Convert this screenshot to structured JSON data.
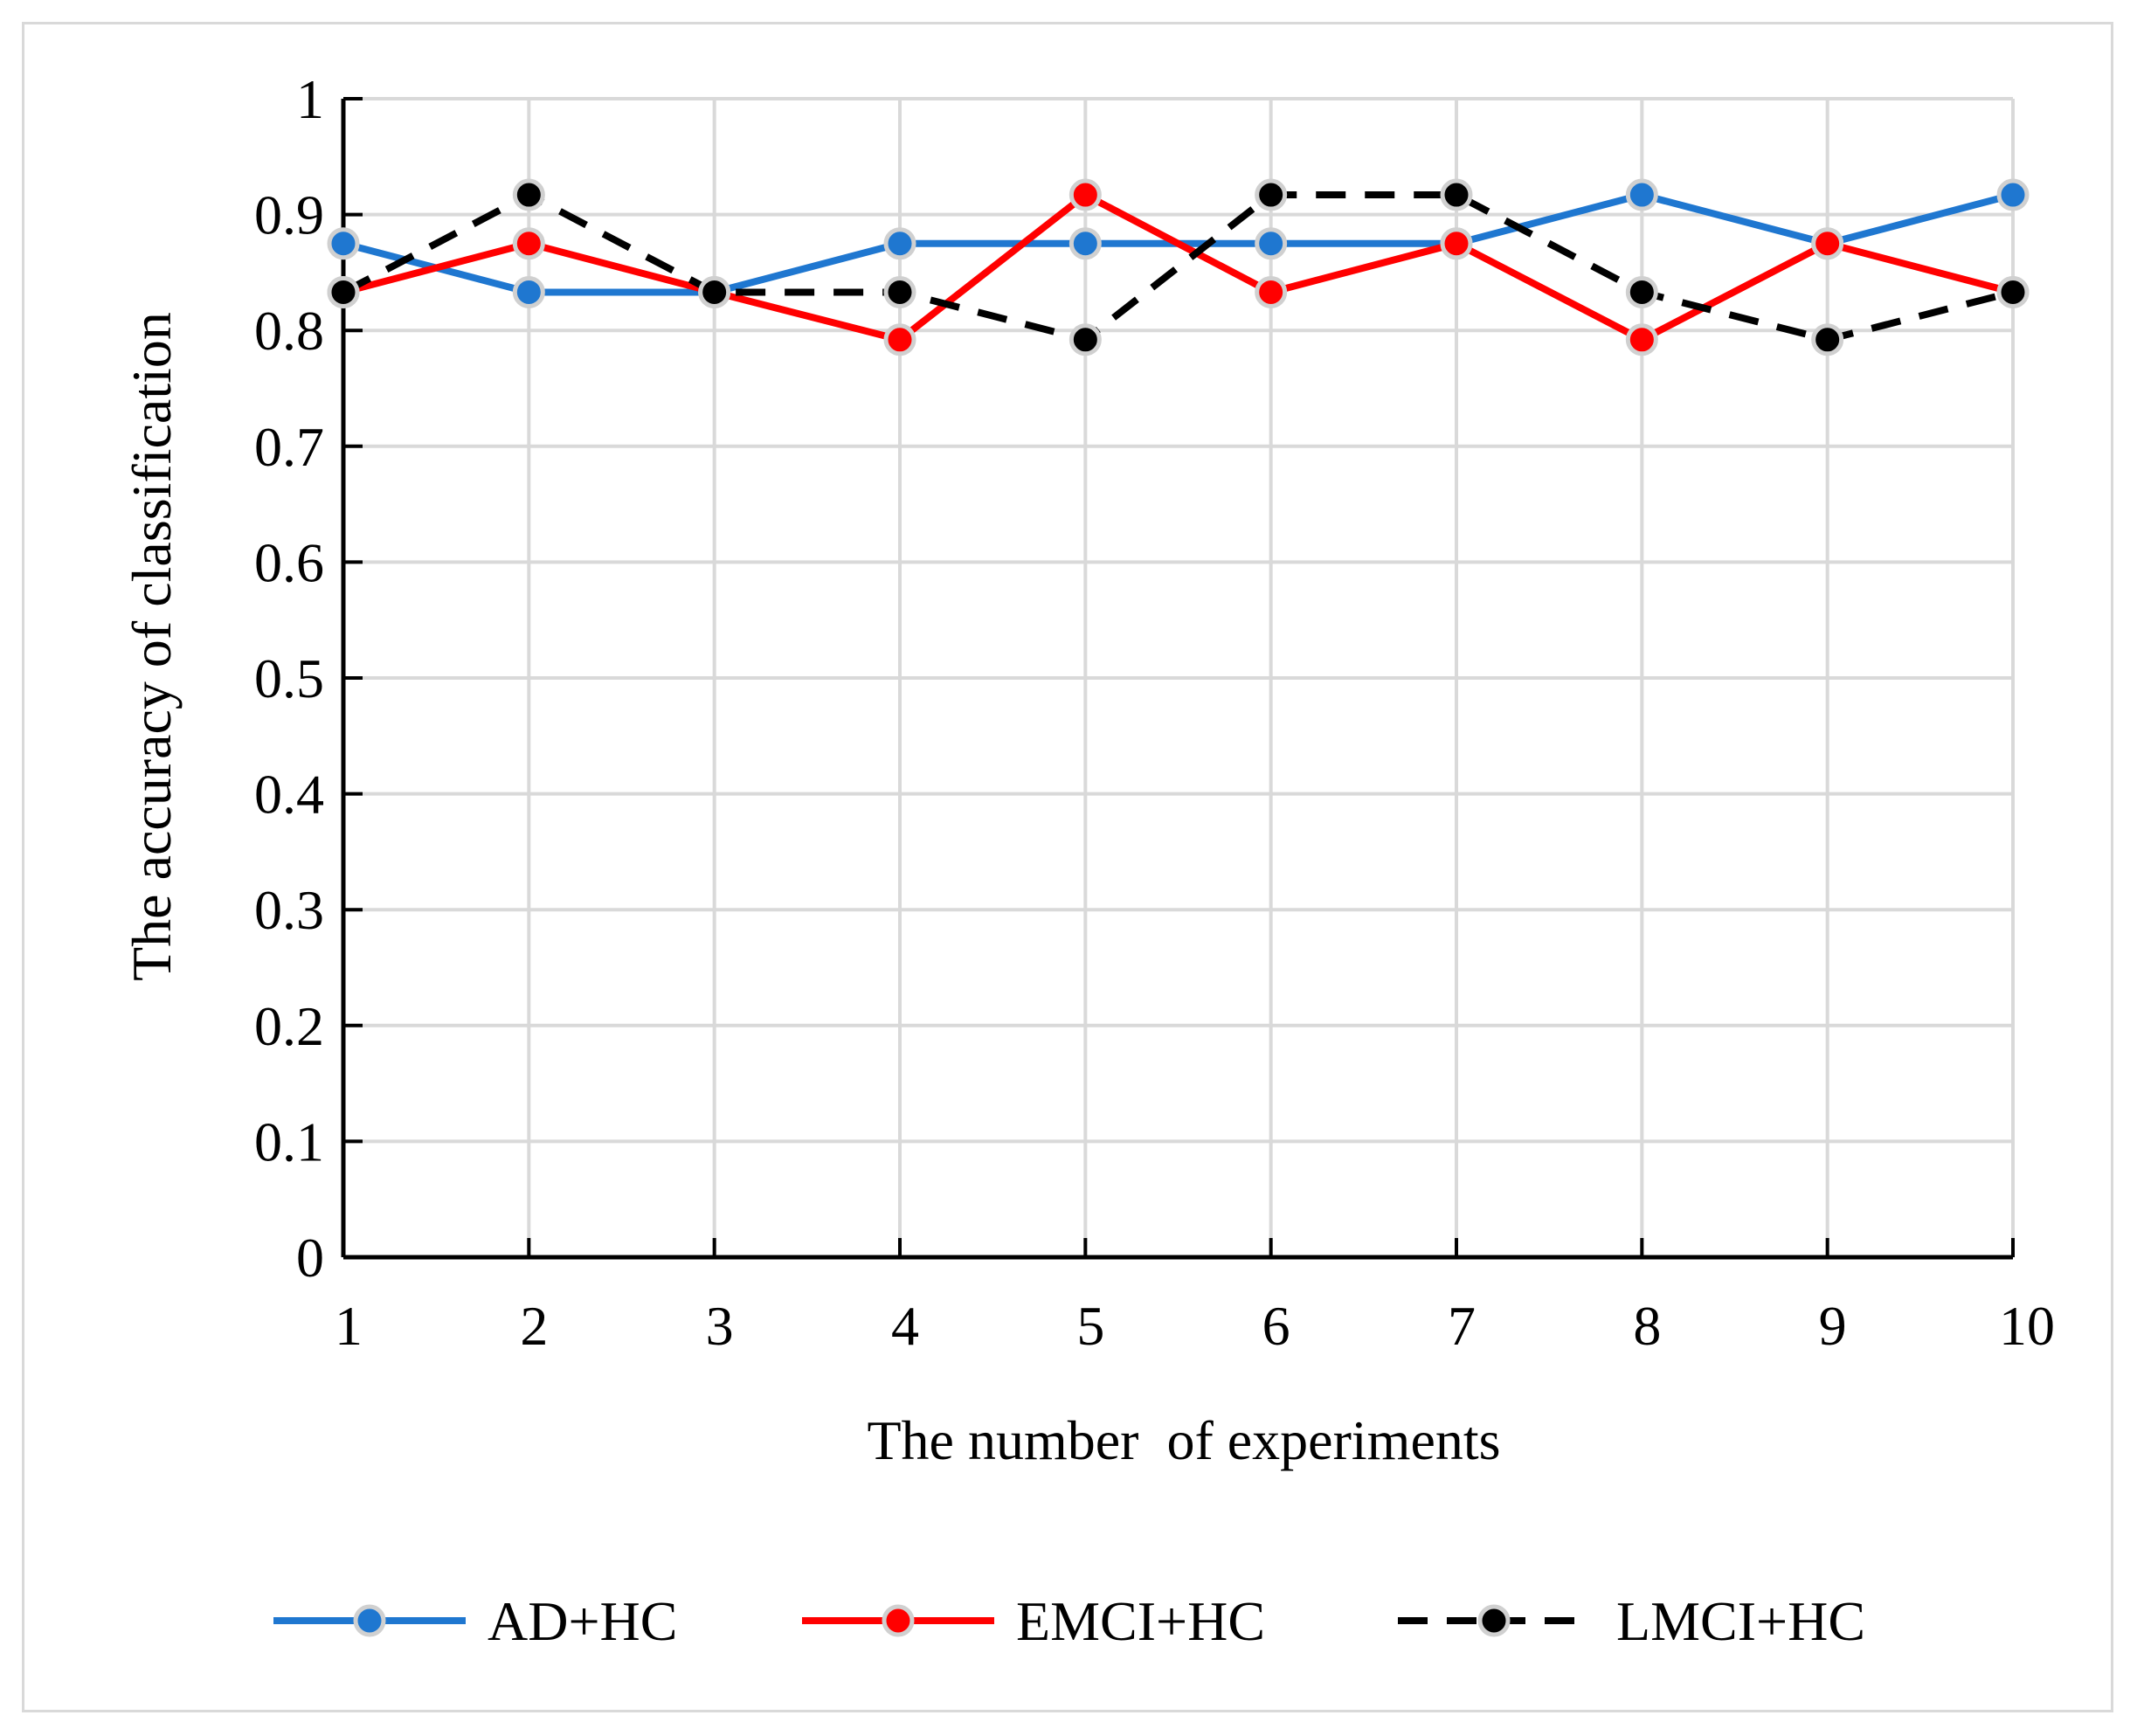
{
  "chart_data": {
    "type": "line",
    "title": "",
    "xlabel": "The number  of experiments",
    "ylabel": "The accuracy of classification",
    "x": [
      1,
      2,
      3,
      4,
      5,
      6,
      7,
      8,
      9,
      10
    ],
    "x_tick_labels": [
      "1",
      "2",
      "3",
      "4",
      "5",
      "6",
      "7",
      "8",
      "9",
      "10"
    ],
    "y_tick_labels": [
      "0",
      "0.1",
      "0.2",
      "0.3",
      "0.4",
      "0.5",
      "0.6",
      "0.7",
      "0.8",
      "0.9",
      "1"
    ],
    "ylim": [
      0,
      1
    ],
    "grid": true,
    "legend_position": "bottom",
    "series": [
      {
        "name": "AD+HC",
        "color": "#1f77d0",
        "dashed": false,
        "marker_color": "#1f77d0",
        "values": [
          0.875,
          0.833,
          0.833,
          0.875,
          0.875,
          0.875,
          0.875,
          0.917,
          0.875,
          0.917
        ]
      },
      {
        "name": "EMCI+HC",
        "color": "#ff0000",
        "dashed": false,
        "marker_color": "#ff0000",
        "values": [
          0.833,
          0.875,
          0.833,
          0.792,
          0.917,
          0.833,
          0.875,
          0.792,
          0.875,
          0.833
        ]
      },
      {
        "name": "LMCI+HC",
        "color": "#000000",
        "dashed": true,
        "marker_color": "#000000",
        "values": [
          0.833,
          0.917,
          0.833,
          0.833,
          0.792,
          0.917,
          0.917,
          0.833,
          0.792,
          0.833
        ]
      }
    ]
  }
}
